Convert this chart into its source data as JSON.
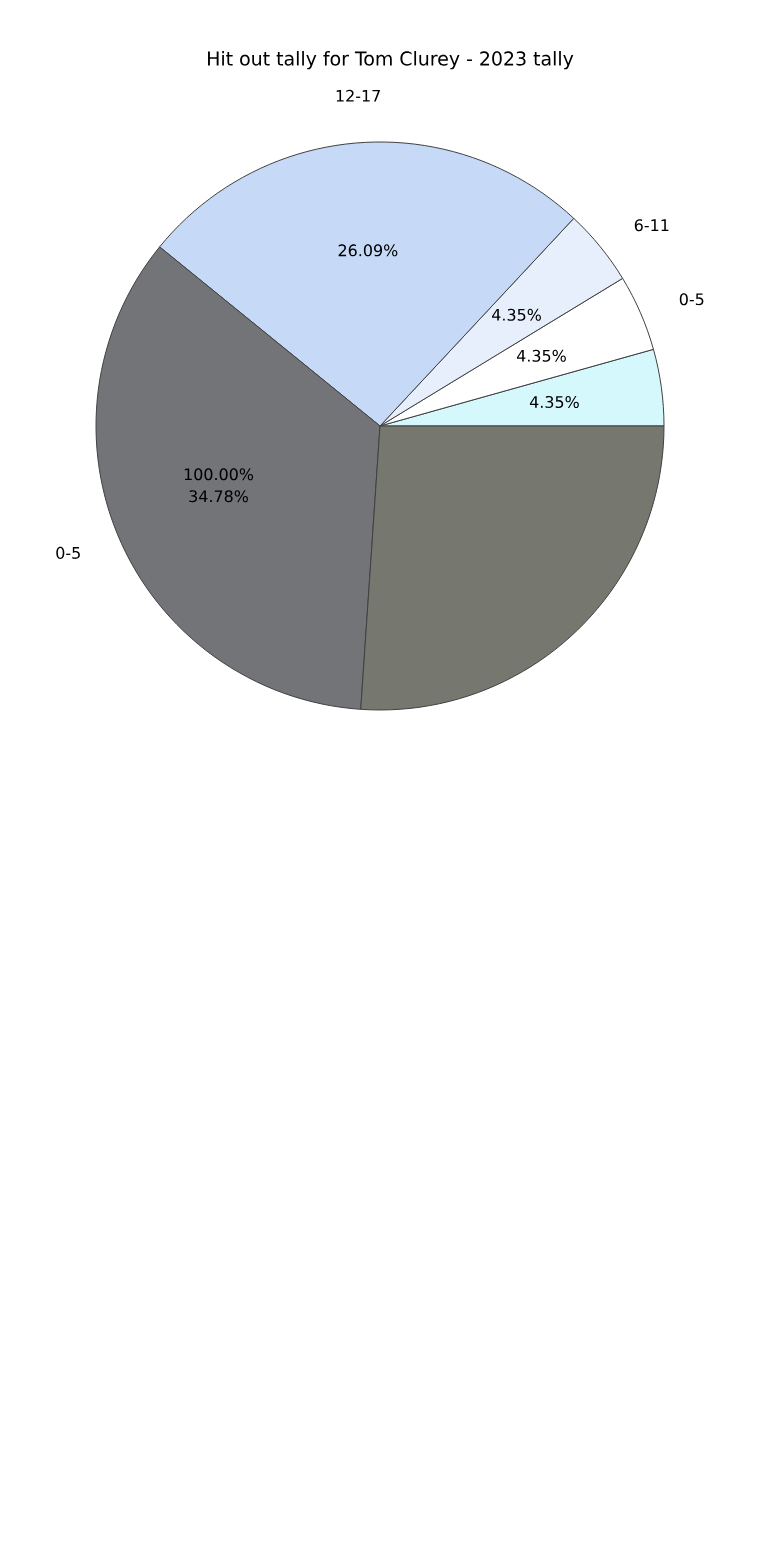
{
  "chart_data": {
    "type": "pie",
    "title": "Hit out tally for Tom Clurey - 2023 tally",
    "categories": [
      null,
      "0-5",
      "6-11",
      "12-17",
      "0-5",
      null
    ],
    "values": [
      4.35,
      4.35,
      4.35,
      26.09,
      34.78,
      26.08
    ],
    "colors": [
      "#d4f8fc",
      "#ffffff",
      "#e8effc",
      "#c6d9f7",
      "#737478",
      "#76776f"
    ],
    "value_labels": [
      "4.35%",
      "4.35%",
      "4.35%",
      "26.09%",
      "34.78%",
      null
    ],
    "annotations": [
      "100.00%"
    ]
  }
}
